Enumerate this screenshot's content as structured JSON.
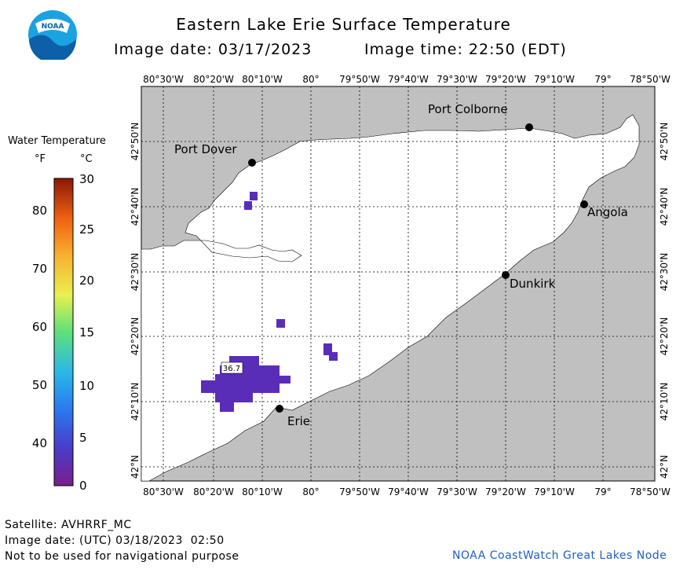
{
  "header": {
    "title": "Eastern Lake Erie Surface Temperature",
    "date_text": "Image date: 03/17/2023",
    "time_text": "Image time: 22:50 (EDT)",
    "logo_text": "NOAA"
  },
  "legend": {
    "title": "Water Temperature",
    "unit_f": "°F",
    "unit_c": "°C",
    "f_ticks": [
      "80",
      "70",
      "60",
      "50",
      "40"
    ],
    "c_ticks": [
      "30",
      "25",
      "20",
      "15",
      "10",
      "5",
      "0"
    ]
  },
  "map": {
    "lon_labels": [
      "80°30'W",
      "80°20'W",
      "80°10'W",
      "80°",
      "79°50'W",
      "79°40'W",
      "79°30'W",
      "79°20'W",
      "79°10'W",
      "79°",
      "78°50'W"
    ],
    "lat_labels": [
      "42°50'N",
      "42°40'N",
      "42°30'N",
      "42°20'N",
      "42°10'N",
      "42°N"
    ],
    "places": {
      "port_colborne": "Port Colborne",
      "port_dover": "Port Dover",
      "angola": "Angola",
      "dunkirk": "Dunkirk",
      "erie": "Erie"
    },
    "temp_readout": "36.7",
    "colors": {
      "land": "#c0c0c0",
      "water": "#ffffff",
      "cold_patch": "#5a2db8"
    }
  },
  "footer": {
    "satellite": "Satellite: AVHRRF_MC",
    "utc_date": "Image date: (UTC) 03/18/2023  02:50",
    "disclaimer": "Not to be used for navigational purpose",
    "credit": "NOAA CoastWatch Great Lakes Node"
  }
}
